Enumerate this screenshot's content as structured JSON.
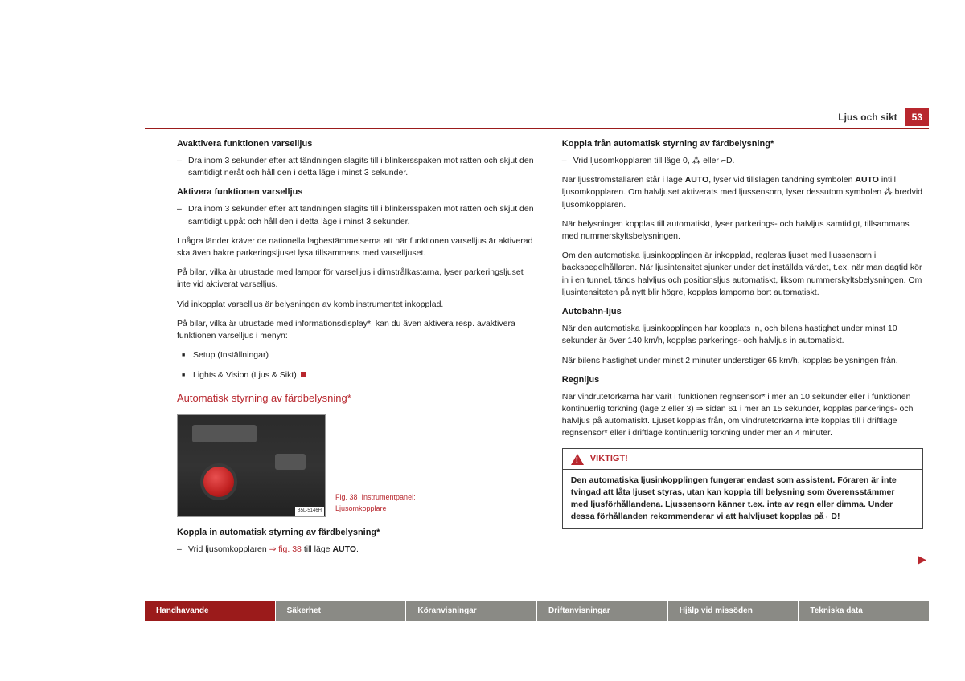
{
  "header": {
    "section_title": "Ljus och sikt",
    "page_number": "53"
  },
  "left_column": {
    "h3_1": "Avaktivera funktionen varselljus",
    "p1": "Dra inom 3 sekunder efter att tändningen slagits till i blinkersspaken mot ratten och skjut den samtidigt neråt och håll den i detta läge i minst 3 sekunder.",
    "h3_2": "Aktivera funktionen varselljus",
    "p2": "Dra inom 3 sekunder efter att tändningen slagits till i blinkersspaken mot ratten och skjut den samtidigt uppåt och håll den i detta läge i minst 3 sekunder.",
    "p3": "I några länder kräver de nationella lagbestämmelserna att när funktionen varselljus är aktiverad ska även bakre parkeringsljuset lysa tillsammans med varselljuset.",
    "p4": "På bilar, vilka är utrustade med lampor för varselljus i dimstrålkastarna, lyser parkeringsljuset inte vid aktiverat varselljus.",
    "p5": "Vid inkopplat varselljus är belysningen av kombiinstrumentet inkopplad.",
    "p6": "På bilar, vilka är utrustade med informationsdisplay*, kan du även aktivera resp. avaktivera funktionen varselljus i menyn:",
    "li1": "Setup (Inställningar)",
    "li2": "Lights & Vision (Ljus & Sikt)",
    "h2_1": "Automatisk styrning av färdbelysning*",
    "fig_label": "Fig. 38",
    "fig_caption": "Instrumentpanel: Ljusomkopplare",
    "fig_tag": "B5L-5146H",
    "h3_3": "Koppla in automatisk styrning av färdbelysning*",
    "p7_a": "Vrid ljusomkopplaren ",
    "p7_ref": "⇒ fig. 38",
    "p7_b": " till läge ",
    "p7_bold": "AUTO",
    "p7_c": "."
  },
  "right_column": {
    "h3_1": "Koppla från automatisk styrning av färdbelysning*",
    "p1": "Vrid ljusomkopplaren till läge 0, ⁂ eller ⌐D.",
    "p2_a": "När ljusströmställaren står i läge ",
    "p2_b1": "AUTO",
    "p2_c": ", lyser vid tillslagen tändning symbolen ",
    "p2_b2": "AUTO",
    "p2_d": " intill ljusomkopplaren. Om halvljuset aktiverats med ljussensorn, lyser dessutom symbolen ⁂ bredvid ljusomkopplaren.",
    "p3": "När belysningen kopplas till automatiskt, lyser parkerings- och halvljus samtidigt, tillsammans med nummerskyltsbelysningen.",
    "p4": "Om den automatiska ljusinkopplingen är inkopplad, regleras ljuset med ljussensorn i backspegelhållaren. När ljusintensitet sjunker under det inställda värdet, t.ex. när man dagtid kör in i en tunnel, tänds halvljus och positionsljus automatiskt, liksom nummerskyltsbelysningen. Om ljusintensiteten på nytt blir högre, kopplas lamporna bort automatiskt.",
    "h4_1": "Autobahn-ljus",
    "p5": "När den automatiska ljusinkopplingen har kopplats in, och bilens hastighet under minst 10 sekunder är över 140 km/h, kopplas parkerings- och halvljus in automatiskt.",
    "p6": "När bilens hastighet under minst 2 minuter understiger 65 km/h, kopplas belysningen från.",
    "h4_2": "Regnljus",
    "p7": "När vindrutetorkarna har varit i funktionen regnsensor* i mer än 10 sekunder eller i funktionen kontinuerlig torkning (läge 2 eller 3) ⇒ sidan 61 i mer än 15 sekunder, kopplas parkerings- och halvljus på automatiskt. Ljuset kopplas från, om vindrutetorkarna inte kopplas till i driftläge regnsensor* eller i driftläge kontinuerlig torkning under mer än 4 minuter.",
    "warn_title": "VIKTIGT!",
    "warn_body": "Den automatiska ljusinkopplingen fungerar endast som assistent. Föraren är inte tvingad att låta ljuset styras, utan kan koppla till belysning som överensstämmer med ljusförhållandena. Ljussensorn känner t.ex. inte av regn eller dimma. Under dessa förhållanden rekommenderar vi att halvljuset kopplas på ⌐D!"
  },
  "footer": {
    "tabs": [
      "Handhavande",
      "Säkerhet",
      "Köranvisningar",
      "Driftanvisningar",
      "Hjälp vid missöden",
      "Tekniska data"
    ]
  },
  "colors": {
    "accent": "#b8272e",
    "tab_active": "#9b1b1b",
    "tab_inactive": "#8a8a85"
  }
}
